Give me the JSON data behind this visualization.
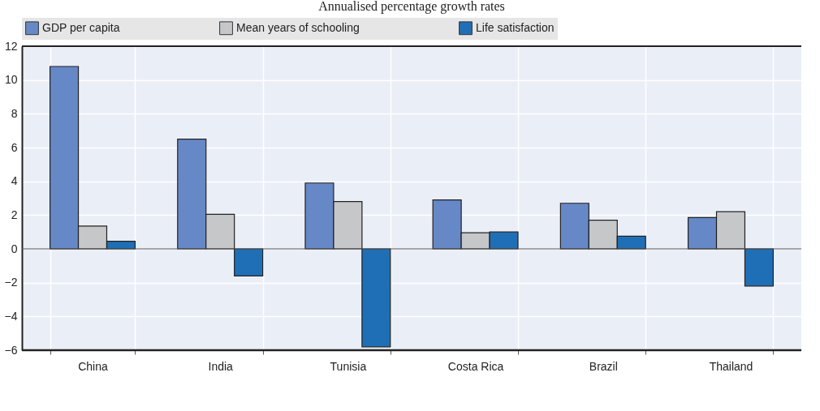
{
  "chart_data": {
    "type": "bar",
    "subtitle": "Annualised percentage growth rates",
    "categories": [
      "China",
      "India",
      "Tunisia",
      "Costa Rica",
      "Brazil",
      "Thailand"
    ],
    "series": [
      {
        "name": "GDP per capita",
        "color": "#6788c6",
        "values": [
          10.8,
          6.5,
          3.9,
          2.9,
          2.7,
          1.85
        ]
      },
      {
        "name": "Mean years of schooling",
        "color": "#c6c7c9",
        "values": [
          1.35,
          2.05,
          2.8,
          0.95,
          1.7,
          2.2
        ]
      },
      {
        "name": "Life satisfaction",
        "color": "#1f6fb7",
        "values": [
          0.45,
          -1.6,
          -5.8,
          1.0,
          0.75,
          -2.2
        ]
      }
    ],
    "ylim": [
      -6,
      12
    ],
    "yticks": [
      -6,
      -4,
      -2,
      0,
      2,
      4,
      6,
      8,
      10,
      12
    ],
    "grid": true,
    "legend": "top"
  }
}
